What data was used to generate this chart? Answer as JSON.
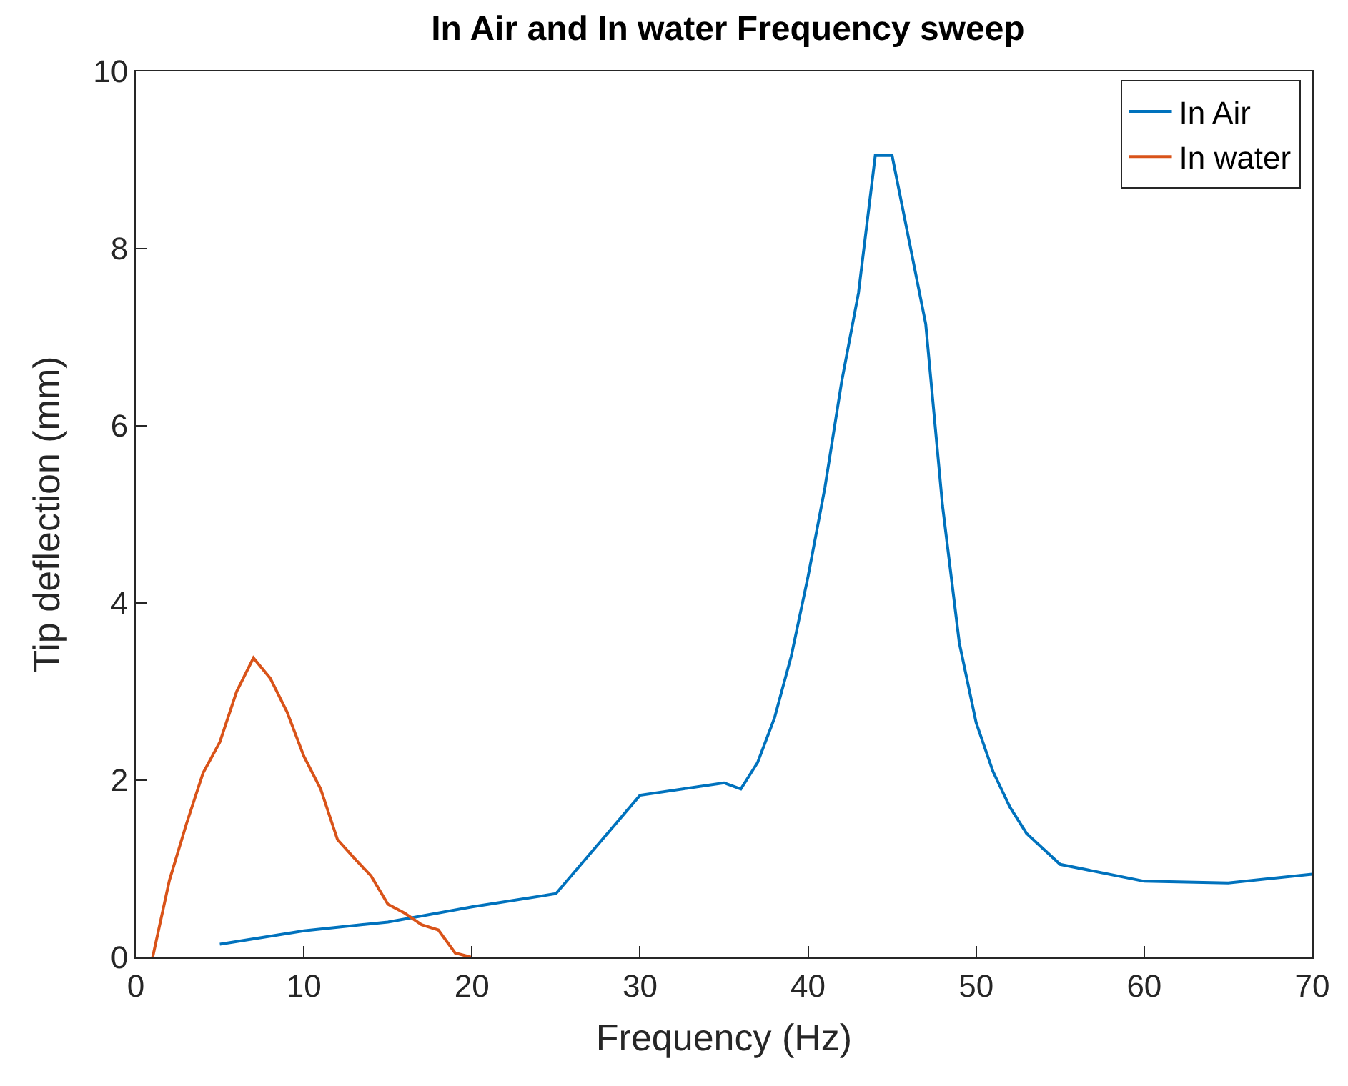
{
  "chart_data": {
    "type": "line",
    "title": "In Air and In water Frequency sweep",
    "xlabel": "Frequency (Hz)",
    "ylabel": "Tip deflection (mm)",
    "xlim": [
      0,
      70
    ],
    "xticks": [
      0,
      10,
      20,
      30,
      40,
      50,
      60,
      70
    ],
    "ylim": [
      0,
      10
    ],
    "yticks": [
      0,
      2,
      4,
      6,
      8,
      10
    ],
    "grid": false,
    "legend": "top right",
    "marker": "none",
    "line_style": "solid",
    "series": [
      {
        "name": "In Air",
        "color": "#0072bd",
        "x": [
          5,
          10,
          15,
          20,
          25,
          30,
          35,
          36,
          37,
          38,
          39,
          40,
          41,
          42,
          43,
          44,
          45,
          46,
          47,
          48,
          49,
          50,
          51,
          52,
          53,
          55,
          60,
          65,
          70
        ],
        "values": [
          0.15,
          0.3,
          0.4,
          0.57,
          0.72,
          1.83,
          1.97,
          1.9,
          2.2,
          2.7,
          3.4,
          4.3,
          5.3,
          6.5,
          7.5,
          9.05,
          9.05,
          8.1,
          7.15,
          5.1,
          3.55,
          2.65,
          2.1,
          1.7,
          1.4,
          1.05,
          0.86,
          0.84,
          0.94
        ]
      },
      {
        "name": "In water",
        "color": "#d95319",
        "x": [
          1,
          2,
          3,
          4,
          5,
          6,
          7,
          8,
          9,
          10,
          11,
          12,
          13,
          14,
          15,
          16,
          17,
          18,
          19,
          20
        ],
        "values": [
          0,
          0.87,
          1.5,
          2.08,
          2.43,
          3.0,
          3.38,
          3.15,
          2.77,
          2.27,
          1.9,
          1.33,
          1.12,
          0.92,
          0.6,
          0.5,
          0.37,
          0.31,
          0.05,
          0
        ]
      }
    ]
  }
}
